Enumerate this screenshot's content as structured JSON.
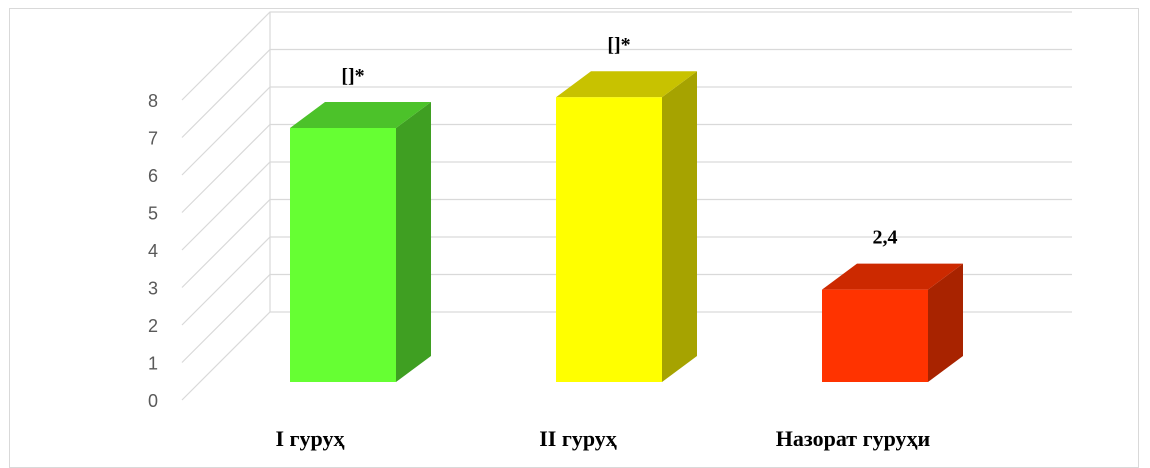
{
  "chart_data": {
    "type": "bar",
    "title": "",
    "xlabel": "",
    "ylabel": "",
    "categories": [
      "I гуруҳ",
      "II гуруҳ",
      "Назорат гуруҳи"
    ],
    "values": [
      6.6,
      7.4,
      2.4
    ],
    "data_labels": [
      "[]*",
      "[]*",
      "2,4"
    ],
    "ylim": [
      0,
      8
    ],
    "yticks": [
      "0",
      "1",
      "2",
      "3",
      "4",
      "5",
      "6",
      "7",
      "8"
    ],
    "grid": true,
    "legend": "none",
    "colors": {
      "front": [
        "#66ff33",
        "#ffff00",
        "#ff3300"
      ],
      "top": [
        "#4cc22a",
        "#c8c200",
        "#cc2900"
      ],
      "side": [
        "#3f9f22",
        "#a6a300",
        "#a82300"
      ]
    },
    "gridline_color": "#d9d9d9"
  }
}
